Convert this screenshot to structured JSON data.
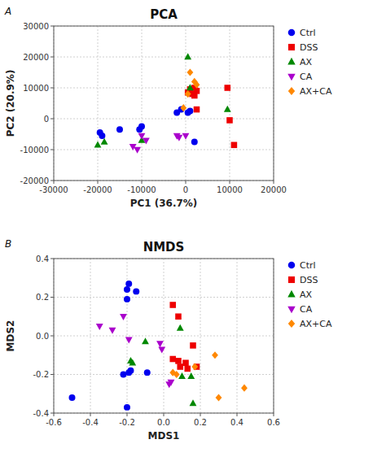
{
  "chart_data": [
    {
      "type": "scatter",
      "title": "PCA",
      "x_label": "PC1 (36.7%)",
      "y_label": "PC2 (20.9%)",
      "annotations": [
        "A"
      ],
      "xlim": [
        -30000,
        20000
      ],
      "ylim": [
        -20000,
        30000
      ],
      "xticks": [
        -30000,
        -20000,
        -10000,
        0,
        10000,
        20000
      ],
      "yticks": [
        -20000,
        -10000,
        0,
        10000,
        20000,
        30000
      ],
      "grid": true,
      "legend": "right",
      "series": [
        {
          "name": "Ctrl",
          "color": "#0000EE",
          "marker": "circle",
          "x": [
            -19500,
            -19000,
            -15000,
            -10500,
            -10000,
            -2000,
            -1000,
            500,
            1000,
            2000
          ],
          "values": [
            -4500,
            -5500,
            -3500,
            -3500,
            -2500,
            2000,
            3000,
            2000,
            2500,
            -7500
          ]
        },
        {
          "name": "DSS",
          "color": "#EE0000",
          "marker": "square",
          "x": [
            500,
            1000,
            2000,
            2500,
            2000,
            1500,
            2500,
            9500,
            10000,
            11000
          ],
          "values": [
            8500,
            9500,
            10000,
            9000,
            7500,
            8000,
            3000,
            10000,
            -500,
            -8500
          ]
        },
        {
          "name": "AX",
          "color": "#008800",
          "marker": "triangle-up",
          "x": [
            -20000,
            -18500,
            -10000,
            500,
            1000,
            9500
          ],
          "values": [
            -8500,
            -7500,
            -7000,
            20000,
            10000,
            3000
          ]
        },
        {
          "name": "CA",
          "color": "#AA00CC",
          "marker": "triangle-down",
          "x": [
            -10000,
            -12000,
            -11000,
            -9000,
            -2000,
            -1500,
            0
          ],
          "values": [
            -5500,
            -9000,
            -10000,
            -7000,
            -5500,
            -6000,
            -5500
          ]
        },
        {
          "name": "AX+CA",
          "color": "#FF8800",
          "marker": "diamond",
          "x": [
            -500,
            500,
            1000,
            2000,
            2500
          ],
          "values": [
            3500,
            8000,
            15000,
            12000,
            11000
          ]
        }
      ]
    },
    {
      "type": "scatter",
      "title": "NMDS",
      "x_label": "MDS1",
      "y_label": "MDS2",
      "annotations": [
        "B"
      ],
      "xlim": [
        -0.6,
        0.6
      ],
      "ylim": [
        -0.4,
        0.4
      ],
      "xticks": [
        -0.6,
        -0.4,
        -0.2,
        {
          "value": 0.0,
          "label": "0.0"
        },
        0.2,
        0.4,
        0.6
      ],
      "yticks": [
        -0.4,
        -0.2,
        {
          "value": 0.0,
          "label": "0.0"
        },
        0.2,
        0.4
      ],
      "grid": true,
      "legend": "right",
      "series": [
        {
          "name": "Ctrl",
          "color": "#0000EE",
          "marker": "circle",
          "x": [
            -0.5,
            -0.2,
            -0.2,
            -0.2,
            -0.19,
            -0.15,
            -0.18,
            -0.19,
            -0.22,
            -0.09
          ],
          "values": [
            -0.32,
            -0.37,
            0.19,
            0.24,
            0.27,
            0.23,
            -0.18,
            -0.19,
            -0.2,
            -0.19
          ]
        },
        {
          "name": "DSS",
          "color": "#EE0000",
          "marker": "square",
          "x": [
            0.05,
            0.08,
            0.05,
            0.08,
            0.09,
            0.12,
            0.13,
            0.16,
            0.18
          ],
          "values": [
            0.16,
            0.1,
            -0.12,
            -0.13,
            -0.16,
            -0.14,
            -0.17,
            -0.05,
            -0.16
          ]
        },
        {
          "name": "AX",
          "color": "#008800",
          "marker": "triangle-up",
          "x": [
            -0.18,
            -0.17,
            -0.1,
            0.09,
            0.1,
            0.15,
            0.16
          ],
          "values": [
            -0.13,
            -0.14,
            -0.03,
            0.04,
            -0.21,
            -0.21,
            -0.35
          ]
        },
        {
          "name": "CA",
          "color": "#AA00CC",
          "marker": "triangle-down",
          "x": [
            -0.35,
            -0.28,
            -0.22,
            -0.19,
            -0.02,
            -0.01,
            0.03,
            0.04
          ],
          "values": [
            0.05,
            0.03,
            0.1,
            -0.02,
            -0.04,
            -0.07,
            -0.25,
            -0.24
          ]
        },
        {
          "name": "AX+CA",
          "color": "#FF8800",
          "marker": "diamond",
          "x": [
            0.05,
            0.07,
            0.17,
            0.28,
            0.3,
            0.44
          ],
          "values": [
            -0.19,
            -0.2,
            -0.16,
            -0.1,
            -0.32,
            -0.27
          ]
        }
      ]
    }
  ]
}
